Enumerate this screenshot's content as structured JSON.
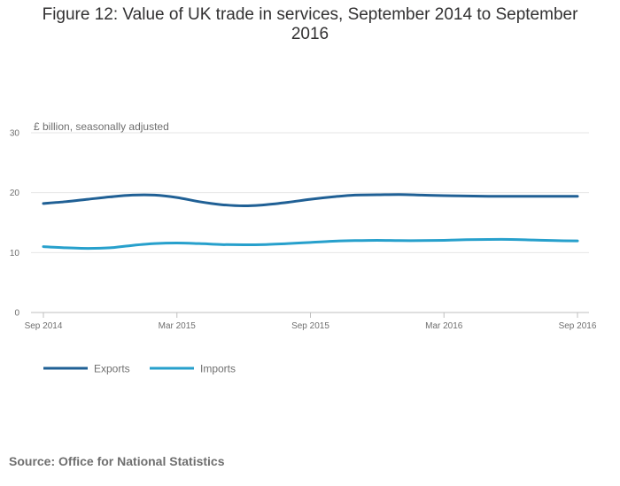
{
  "chart_data": {
    "type": "line",
    "title": "Figure 12: Value of UK trade in services, September 2014 to September 2016",
    "ylabel": "£ billion, seasonally adjusted",
    "xlabel": "",
    "ylim": [
      0,
      30
    ],
    "yticks": [
      0,
      10,
      20,
      30
    ],
    "grid": true,
    "legend_position": "bottom-left",
    "x": [
      "Sep 2014",
      "Oct 2014",
      "Nov 2014",
      "Dec 2014",
      "Jan 2015",
      "Feb 2015",
      "Mar 2015",
      "Apr 2015",
      "May 2015",
      "Jun 2015",
      "Jul 2015",
      "Aug 2015",
      "Sep 2015",
      "Oct 2015",
      "Nov 2015",
      "Dec 2015",
      "Jan 2016",
      "Feb 2016",
      "Mar 2016",
      "Apr 2016",
      "May 2016",
      "Jun 2016",
      "Jul 2016",
      "Aug 2016",
      "Sep 2016"
    ],
    "xtick_labels": [
      "Sep 2014",
      "Mar 2015",
      "Sep 2015",
      "Mar 2016",
      "Sep 2016"
    ],
    "xtick_indices": [
      0,
      6,
      12,
      18,
      24
    ],
    "series": [
      {
        "name": "Exports",
        "color": "#206095",
        "values": [
          18.2,
          18.5,
          18.9,
          19.3,
          19.6,
          19.6,
          19.2,
          18.5,
          18.0,
          17.8,
          18.0,
          18.4,
          18.9,
          19.3,
          19.6,
          19.65,
          19.7,
          19.6,
          19.5,
          19.45,
          19.4,
          19.4,
          19.4,
          19.4,
          19.4
        ]
      },
      {
        "name": "Imports",
        "color": "#27a0cc",
        "values": [
          11.0,
          10.8,
          10.7,
          10.8,
          11.2,
          11.5,
          11.6,
          11.5,
          11.35,
          11.3,
          11.35,
          11.5,
          11.7,
          11.9,
          12.0,
          12.05,
          12.0,
          12.0,
          12.05,
          12.15,
          12.2,
          12.2,
          12.1,
          12.0,
          11.95
        ]
      }
    ],
    "source": "Source: Office for National Statistics"
  }
}
